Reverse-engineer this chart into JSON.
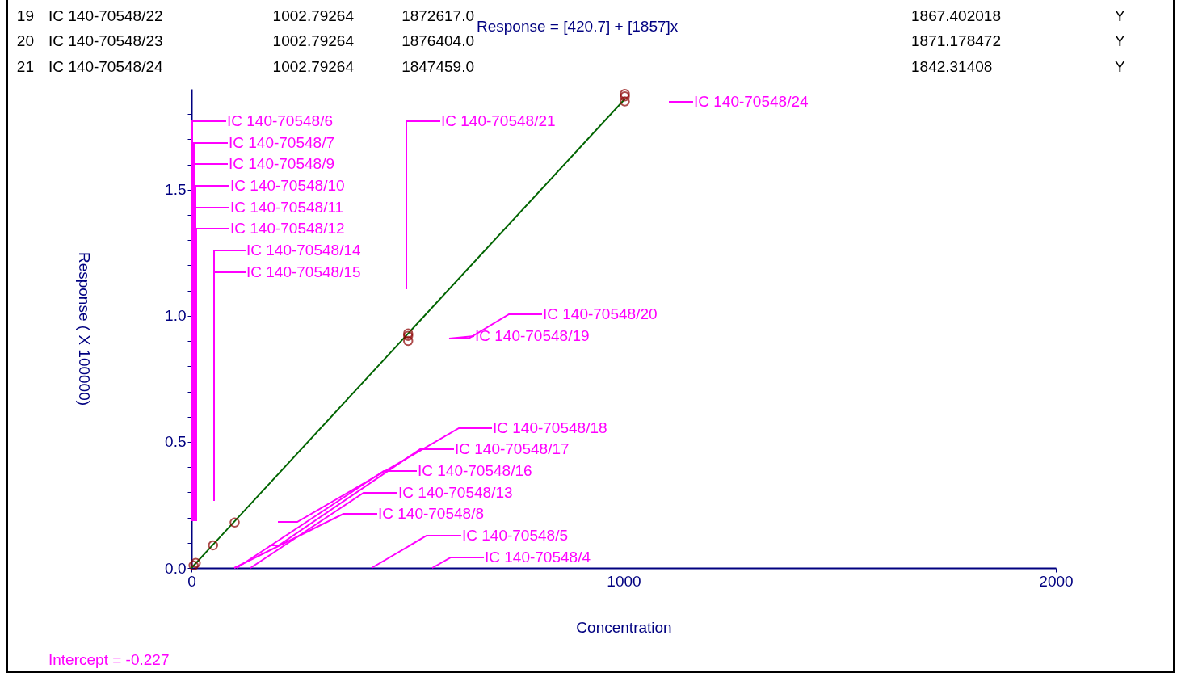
{
  "chart_data": {
    "type": "scatter",
    "xlabel": "Concentration",
    "ylabel": "Response ( X 100000)",
    "xlim": [
      0,
      2000
    ],
    "xticks": [
      0,
      1000,
      2000
    ],
    "ylim": [
      0,
      1.9
    ],
    "yticks": [
      {
        "value": 0,
        "label": "0.0"
      },
      {
        "value": 0.1,
        "label": null
      },
      {
        "value": 0.2,
        "label": null
      },
      {
        "value": 0.3,
        "label": null
      },
      {
        "value": 0.4,
        "label": null
      },
      {
        "value": 0.5,
        "label": "0.5"
      },
      {
        "value": 0.6,
        "label": null
      },
      {
        "value": 0.7,
        "label": null
      },
      {
        "value": 0.8,
        "label": null
      },
      {
        "value": 0.9,
        "label": null
      },
      {
        "value": 1,
        "label": "1.0"
      },
      {
        "value": 1.1,
        "label": null
      },
      {
        "value": 1.2,
        "label": null
      },
      {
        "value": 1.3,
        "label": null
      },
      {
        "value": 1.4,
        "label": null
      },
      {
        "value": 1.5,
        "label": "1.5"
      },
      {
        "value": 1.6,
        "label": null
      },
      {
        "value": 1.7,
        "label": null
      },
      {
        "value": 1.8,
        "label": null
      }
    ],
    "series": [
      {
        "type": "line",
        "color": "#006400",
        "x": [
          0,
          1002.79
        ],
        "values": [
          0,
          1.86
        ]
      },
      {
        "color": "#8b0000",
        "x": [
          1002.79,
          1002.79,
          1002.79,
          501.4,
          501.4,
          501.4,
          100,
          50,
          10,
          5
        ],
        "values": [
          1.87,
          1.88,
          1.85,
          0.93,
          0.92,
          0.9,
          0.18,
          0.09,
          0.02,
          0.01
        ]
      }
    ],
    "annotations": [
      "19",
      "IC 140-70548/22",
      "1002.79264",
      "1872617.0",
      "1867.402018",
      "Y",
      "20",
      "IC 140-70548/23",
      "1002.79264",
      "1876404.0",
      "1871.178472",
      "Y",
      "21",
      "IC 140-70548/24",
      "1002.79264",
      "1847459.0",
      "1842.31408",
      "Y",
      "Response = [420.7] + [1857]x",
      "IC 140-70548/24",
      "IC 140-70548/6",
      "IC 140-70548/21",
      "IC 140-70548/7",
      "IC 140-70548/9",
      "IC 140-70548/10",
      "IC 140-70548/11",
      "IC 140-70548/12",
      "IC 140-70548/14",
      "IC 140-70548/15",
      "IC 140-70548/20",
      "IC 140-70548/19",
      "IC 140-70548/18",
      "IC 140-70548/17",
      "IC 140-70548/16",
      "IC 140-70548/13",
      "IC 140-70548/8",
      "IC 140-70548/5",
      "IC 140-70548/4",
      "Intercept = -0.227"
    ]
  }
}
